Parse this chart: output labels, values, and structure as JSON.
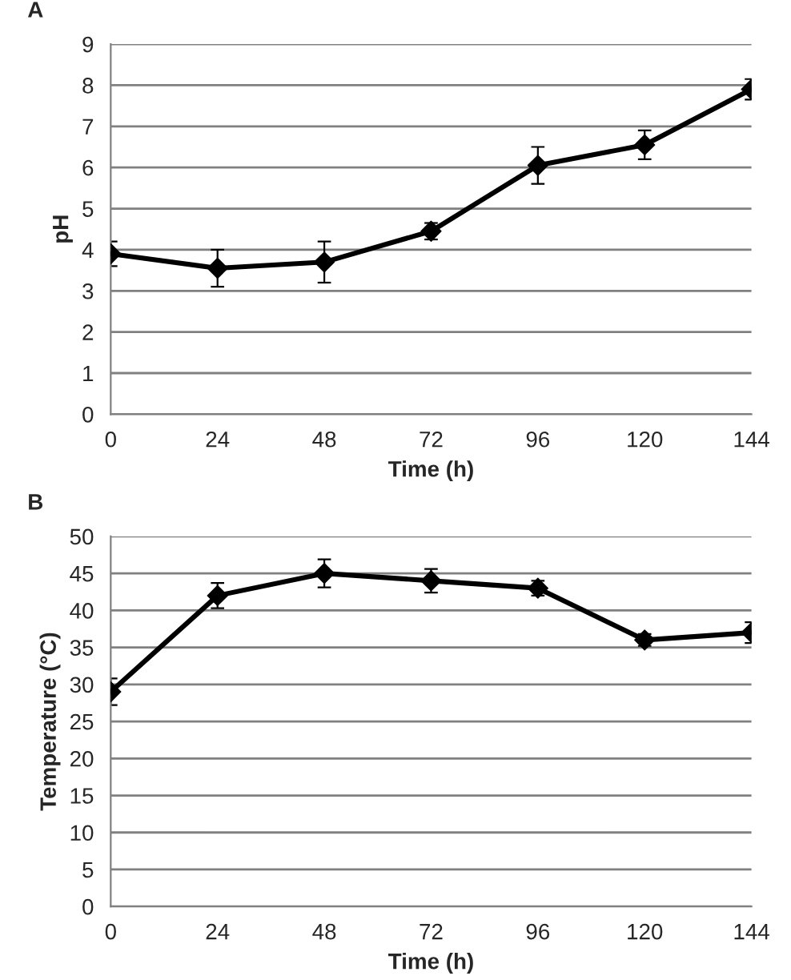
{
  "chart_data": [
    {
      "type": "line",
      "xlabel": "Time (h)",
      "ylabel": "pH",
      "annotations": [
        "A"
      ],
      "x": [
        0,
        24,
        48,
        72,
        96,
        120,
        144
      ],
      "series": [
        {
          "color": "#000000",
          "values": [
            3.9,
            3.55,
            3.7,
            4.45,
            6.05,
            6.55,
            7.9
          ],
          "errors": [
            0.3,
            0.45,
            0.5,
            0.2,
            0.45,
            0.35,
            0.25
          ]
        }
      ],
      "xlim": [
        0,
        144
      ],
      "xticks": [
        0,
        24,
        48,
        72,
        96,
        120,
        144
      ],
      "ylim": [
        0,
        9
      ],
      "yticks": [
        0,
        1,
        2,
        3,
        4,
        5,
        6,
        7,
        8,
        9
      ],
      "grid": "y",
      "marker": "diamond",
      "line_style": "solid"
    },
    {
      "type": "line",
      "xlabel": "Time (h)",
      "ylabel": "Temperature (°C)",
      "annotations": [
        "B"
      ],
      "x": [
        0,
        24,
        48,
        72,
        96,
        120,
        144
      ],
      "series": [
        {
          "color": "#000000",
          "values": [
            29,
            42,
            45,
            44,
            43,
            36,
            37
          ],
          "errors": [
            1.8,
            1.7,
            1.9,
            1.6,
            1.0,
            0.8,
            1.4
          ]
        }
      ],
      "xlim": [
        0,
        144
      ],
      "xticks": [
        0,
        24,
        48,
        72,
        96,
        120,
        144
      ],
      "ylim": [
        0,
        50
      ],
      "yticks": [
        0,
        5,
        10,
        15,
        20,
        25,
        30,
        35,
        40,
        45,
        50
      ],
      "grid": "y",
      "marker": "diamond",
      "line_style": "solid"
    }
  ]
}
